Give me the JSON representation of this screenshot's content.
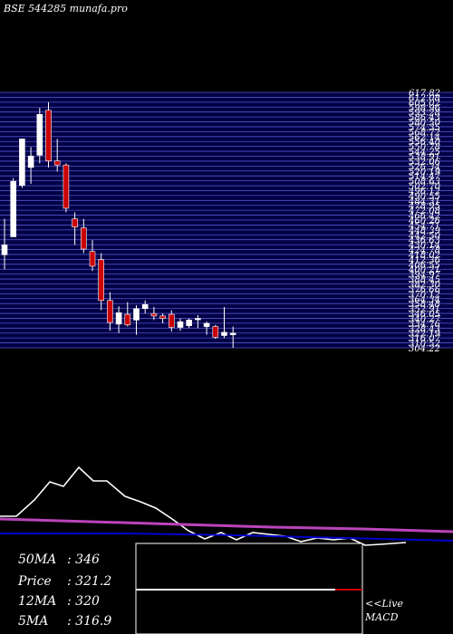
{
  "title": "BSE 544285 munafa.pro",
  "chart_data": {
    "type": "candlestick",
    "price_axis": {
      "range": [
        304,
        617
      ],
      "top_label": "617.82",
      "tick_labels": [
        "617.82",
        "612.08",
        "605.02",
        "598.96",
        "593.28",
        "586.43",
        "580.50",
        "574.35",
        "568.72",
        "562.14",
        "556.40",
        "550.78",
        "544.25",
        "538.91",
        "532.06",
        "526.34",
        "520.19",
        "514.47",
        "508.63",
        "502.70",
        "496.12",
        "490.55",
        "484.31",
        "478.95",
        "472.08",
        "466.42",
        "460.26",
        "454.71",
        "448.39",
        "442.50",
        "436.63",
        "430.14",
        "424.78",
        "418.02",
        "412.36",
        "406.55",
        "400.21",
        "394.97",
        "388.45",
        "382.30",
        "376.66",
        "370.12",
        "364.34",
        "358.48",
        "352.91",
        "346.05",
        "340.27",
        "334.76",
        "328.43",
        "322.19",
        "316.07",
        "310.52",
        "304.22"
      ]
    },
    "candles": [
      {
        "open": 418,
        "high": 462,
        "low": 400,
        "close": 430
      },
      {
        "open": 440,
        "high": 512,
        "low": 440,
        "close": 508
      },
      {
        "open": 503,
        "high": 560,
        "low": 500,
        "close": 560
      },
      {
        "open": 525,
        "high": 550,
        "low": 505,
        "close": 539
      },
      {
        "open": 540,
        "high": 598,
        "low": 530,
        "close": 590
      },
      {
        "open": 595,
        "high": 605,
        "low": 525,
        "close": 533
      },
      {
        "open": 533,
        "high": 560,
        "low": 520,
        "close": 528
      },
      {
        "open": 528,
        "high": 530,
        "low": 470,
        "close": 475
      },
      {
        "open": 462,
        "high": 470,
        "low": 430,
        "close": 452
      },
      {
        "open": 451,
        "high": 462,
        "low": 420,
        "close": 425
      },
      {
        "open": 422,
        "high": 436,
        "low": 398,
        "close": 404
      },
      {
        "open": 412,
        "high": 420,
        "low": 350,
        "close": 362
      },
      {
        "open": 362,
        "high": 372,
        "low": 325,
        "close": 335
      },
      {
        "open": 333,
        "high": 355,
        "low": 322,
        "close": 347
      },
      {
        "open": 345,
        "high": 360,
        "low": 330,
        "close": 332
      },
      {
        "open": 338,
        "high": 356,
        "low": 320,
        "close": 352
      },
      {
        "open": 352,
        "high": 362,
        "low": 346,
        "close": 357
      },
      {
        "open": 346,
        "high": 354,
        "low": 338,
        "close": 343
      },
      {
        "open": 343,
        "high": 346,
        "low": 334,
        "close": 340
      },
      {
        "open": 345,
        "high": 350,
        "low": 324,
        "close": 329
      },
      {
        "open": 329,
        "high": 340,
        "low": 325,
        "close": 336
      },
      {
        "open": 331,
        "high": 340,
        "low": 328,
        "close": 338
      },
      {
        "open": 339,
        "high": 344,
        "low": 328,
        "close": 340
      },
      {
        "open": 330,
        "high": 336,
        "low": 320,
        "close": 334
      },
      {
        "open": 330,
        "high": 332,
        "low": 315,
        "close": 317
      },
      {
        "open": 319,
        "high": 354,
        "low": 316,
        "close": 323
      },
      {
        "open": 320,
        "high": 330,
        "low": 304,
        "close": 322
      }
    ],
    "stats": [
      {
        "label": "50MA",
        "value": "346"
      },
      {
        "label": "Price",
        "value": "321.2"
      },
      {
        "label": "12MA",
        "value": "320"
      },
      {
        "label": "5MA",
        "value": "316.9"
      }
    ],
    "live_label": [
      "<<Live",
      "MACD"
    ],
    "colors": {
      "background": "#000000",
      "price_band": "#000044",
      "grid": "#5555cc",
      "up_candle": "#ffffff",
      "down_candle": "#cc0000",
      "price_line": "#ffffff",
      "ma_purple": "#bb44bb",
      "ma_blue": "#0000cc",
      "macd_hist": "#cc0000"
    }
  }
}
